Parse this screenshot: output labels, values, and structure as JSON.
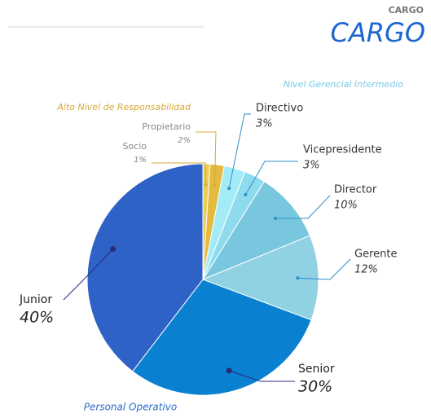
{
  "chart_data": {
    "type": "pie",
    "supertitle": "CARGO",
    "title": "CARGO",
    "categories": [
      "Socio",
      "Propietario",
      "Directivo",
      "Vicepresidente",
      "Director",
      "Gerente",
      "Senior",
      "Junior"
    ],
    "values": [
      1,
      2,
      3,
      3,
      10,
      12,
      30,
      40
    ],
    "value_labels": [
      "1%",
      "2%",
      "3%",
      "3%",
      "10%",
      "12%",
      "30%",
      "40%"
    ],
    "colors": [
      "#e9cd57",
      "#e2bb3f",
      "#a3ecf7",
      "#8edbee",
      "#79c7de",
      "#90d1e4",
      "#0a80d0",
      "#2f62c6"
    ],
    "groups": [
      {
        "name": "Alto Nivel de Responsabilidad",
        "color": "#d8a93a"
      },
      {
        "name": "Nivel Gerencial Intermedio",
        "color": "#79c9e6"
      },
      {
        "name": "Personal Operativo",
        "color": "#2b6cc8"
      }
    ]
  }
}
